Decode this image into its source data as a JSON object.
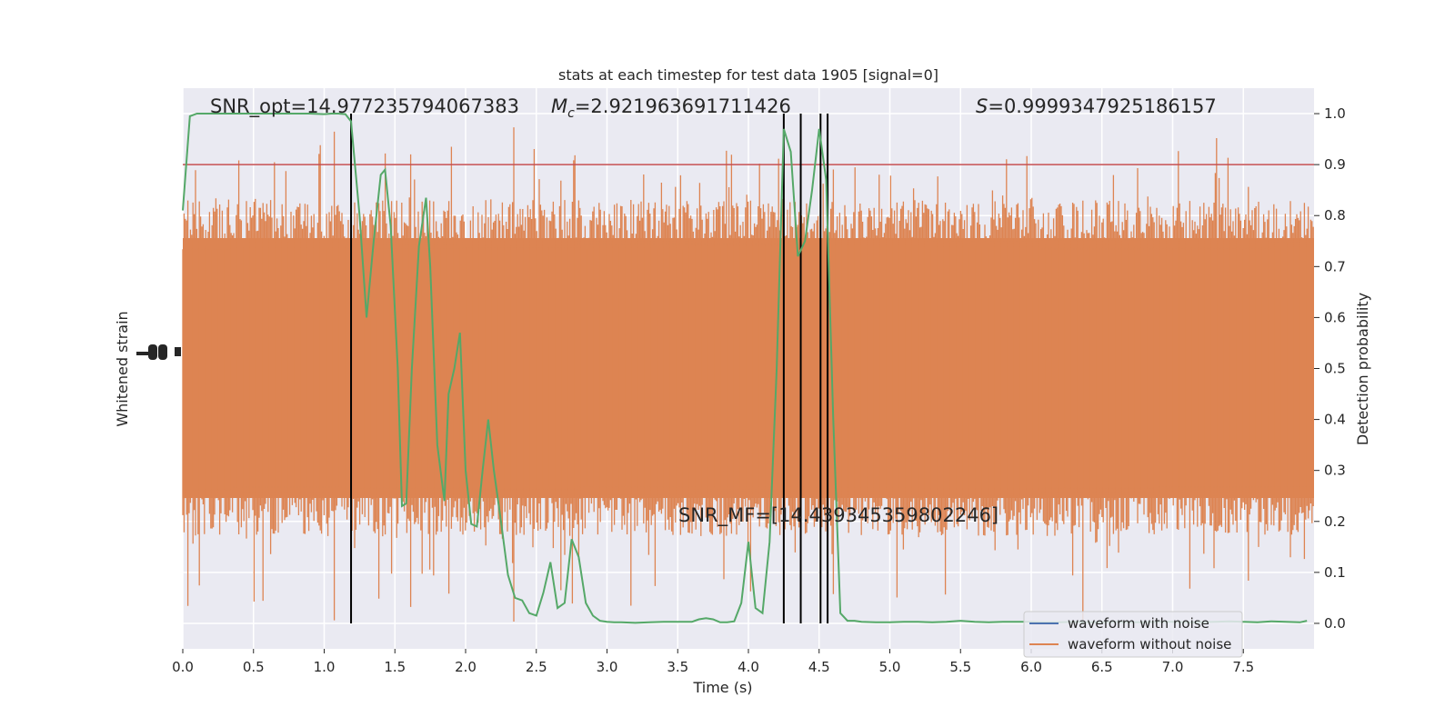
{
  "chart_data": {
    "type": "line",
    "title": "stats at each timestep for test data 1905 [signal=0]",
    "xlabel": "Time (s)",
    "ylabel_left": "Whitened strain",
    "ylabel_right": "Detection probability",
    "xlim": [
      0,
      8
    ],
    "ylim_right": [
      -0.05,
      1.05
    ],
    "x_ticks": [
      0.0,
      0.5,
      1.0,
      1.5,
      2.0,
      2.5,
      3.0,
      3.5,
      4.0,
      4.5,
      5.0,
      5.5,
      6.0,
      6.5,
      7.0,
      7.5
    ],
    "y_ticks_right": [
      0.0,
      0.1,
      0.2,
      0.3,
      0.4,
      0.5,
      0.6,
      0.7,
      0.8,
      0.9,
      1.0
    ],
    "grid": true,
    "legend_placement": "lower-right",
    "legend": [
      {
        "label": "waveform with noise",
        "color": "#4c72b0"
      },
      {
        "label": "waveform without noise",
        "color": "#dd8452"
      }
    ],
    "threshold": {
      "y": 0.9,
      "color": "#c44e52"
    },
    "detection_lines_x": [
      1.19,
      4.25,
      4.37,
      4.51,
      4.56
    ],
    "annotations": {
      "snr_opt": "SNR_opt=14.977235794067383",
      "mc_symbol": "M",
      "mc_sub": "c",
      "mc_value": "=2.921963691711426",
      "s_symbol": "S",
      "s_value": "=0.9999347925186157",
      "snr_mf": "SNR_MF=[14.439345359802246]"
    },
    "series": [
      {
        "name": "detection probability",
        "color": "#55a868",
        "x": [
          0.0,
          0.05,
          0.1,
          0.15,
          0.2,
          0.3,
          0.4,
          0.5,
          0.6,
          0.7,
          0.8,
          0.9,
          1.0,
          1.05,
          1.1,
          1.15,
          1.19,
          1.25,
          1.3,
          1.35,
          1.4,
          1.43,
          1.47,
          1.52,
          1.55,
          1.58,
          1.62,
          1.67,
          1.72,
          1.75,
          1.8,
          1.85,
          1.88,
          1.92,
          1.96,
          2.0,
          2.04,
          2.08,
          2.12,
          2.16,
          2.2,
          2.25,
          2.3,
          2.35,
          2.4,
          2.45,
          2.5,
          2.55,
          2.6,
          2.65,
          2.7,
          2.75,
          2.8,
          2.85,
          2.9,
          2.95,
          3.0,
          3.05,
          3.1,
          3.2,
          3.3,
          3.4,
          3.5,
          3.6,
          3.65,
          3.7,
          3.75,
          3.8,
          3.85,
          3.9,
          3.95,
          4.0,
          4.05,
          4.1,
          4.15,
          4.2,
          4.25,
          4.3,
          4.35,
          4.4,
          4.45,
          4.5,
          4.55,
          4.6,
          4.65,
          4.7,
          4.75,
          4.8,
          4.9,
          5.0,
          5.1,
          5.2,
          5.3,
          5.4,
          5.5,
          5.6,
          5.7,
          5.8,
          5.9,
          6.0,
          6.1,
          6.2,
          6.3,
          6.4,
          6.5,
          6.6,
          6.7,
          6.8,
          6.9,
          7.0,
          7.1,
          7.2,
          7.3,
          7.4,
          7.5,
          7.6,
          7.7,
          7.8,
          7.9,
          7.95
        ],
        "y": [
          0.81,
          0.995,
          1.0,
          1.0,
          1.0,
          1.0,
          1.0,
          1.0,
          1.0,
          1.0,
          1.0,
          1.0,
          0.999,
          1.0,
          1.0,
          0.999,
          0.985,
          0.8,
          0.6,
          0.75,
          0.88,
          0.89,
          0.78,
          0.5,
          0.23,
          0.235,
          0.5,
          0.74,
          0.835,
          0.7,
          0.35,
          0.24,
          0.45,
          0.5,
          0.57,
          0.3,
          0.195,
          0.19,
          0.3,
          0.4,
          0.3,
          0.2,
          0.095,
          0.05,
          0.045,
          0.02,
          0.015,
          0.06,
          0.12,
          0.03,
          0.04,
          0.165,
          0.13,
          0.04,
          0.015,
          0.005,
          0.003,
          0.002,
          0.002,
          0.001,
          0.002,
          0.003,
          0.003,
          0.003,
          0.008,
          0.01,
          0.008,
          0.002,
          0.002,
          0.004,
          0.04,
          0.16,
          0.03,
          0.02,
          0.16,
          0.5,
          0.97,
          0.925,
          0.72,
          0.75,
          0.85,
          0.97,
          0.87,
          0.4,
          0.02,
          0.005,
          0.005,
          0.003,
          0.002,
          0.002,
          0.003,
          0.003,
          0.002,
          0.003,
          0.005,
          0.003,
          0.002,
          0.003,
          0.003,
          0.003,
          0.002,
          0.002,
          0.003,
          0.002,
          0.002,
          0.003,
          0.002,
          0.002,
          0.003,
          0.003,
          0.002,
          0.002,
          0.003,
          0.004,
          0.003,
          0.002,
          0.004,
          0.003,
          0.002,
          0.005
        ]
      }
    ]
  }
}
